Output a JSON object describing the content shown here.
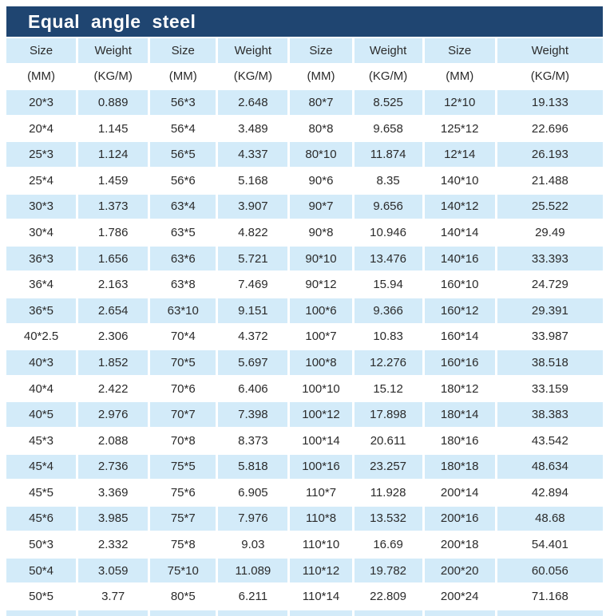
{
  "title": "Equal angle steel",
  "colors": {
    "title_bar_bg": "#1f4571",
    "title_text": "#ffffff",
    "row_highlight": "#d3ebf9",
    "row_alt": "#ffffff",
    "body_text": "#2b2b2b"
  },
  "table": {
    "headers": [
      "Size",
      "Weight",
      "Size",
      "Weight",
      "Size",
      "Weight",
      "Size",
      "Weight"
    ],
    "units": [
      "(MM)",
      "(KG/M)",
      "(MM)",
      "(KG/M)",
      "(MM)",
      "(KG/M)",
      "(MM)",
      "(KG/M)"
    ],
    "rows": [
      [
        "20*3",
        "0.889",
        "56*3",
        "2.648",
        "80*7",
        "8.525",
        "12*10",
        "19.133"
      ],
      [
        "20*4",
        "1.145",
        "56*4",
        "3.489",
        "80*8",
        "9.658",
        "125*12",
        "22.696"
      ],
      [
        "25*3",
        "1.124",
        "56*5",
        "4.337",
        "80*10",
        "11.874",
        "12*14",
        "26.193"
      ],
      [
        "25*4",
        "1.459",
        "56*6",
        "5.168",
        "90*6",
        "8.35",
        "140*10",
        "21.488"
      ],
      [
        "30*3",
        "1.373",
        "63*4",
        "3.907",
        "90*7",
        "9.656",
        "140*12",
        "25.522"
      ],
      [
        "30*4",
        "1.786",
        "63*5",
        "4.822",
        "90*8",
        "10.946",
        "140*14",
        "29.49"
      ],
      [
        "36*3",
        "1.656",
        "63*6",
        "5.721",
        "90*10",
        "13.476",
        "140*16",
        "33.393"
      ],
      [
        "36*4",
        "2.163",
        "63*8",
        "7.469",
        "90*12",
        "15.94",
        "160*10",
        "24.729"
      ],
      [
        "36*5",
        "2.654",
        "63*10",
        "9.151",
        "100*6",
        "9.366",
        "160*12",
        "29.391"
      ],
      [
        "40*2.5",
        "2.306",
        "70*4",
        "4.372",
        "100*7",
        "10.83",
        "160*14",
        "33.987"
      ],
      [
        "40*3",
        "1.852",
        "70*5",
        "5.697",
        "100*8",
        "12.276",
        "160*16",
        "38.518"
      ],
      [
        "40*4",
        "2.422",
        "70*6",
        "6.406",
        "100*10",
        "15.12",
        "180*12",
        "33.159"
      ],
      [
        "40*5",
        "2.976",
        "70*7",
        "7.398",
        "100*12",
        "17.898",
        "180*14",
        "38.383"
      ],
      [
        "45*3",
        "2.088",
        "70*8",
        "8.373",
        "100*14",
        "20.611",
        "180*16",
        "43.542"
      ],
      [
        "45*4",
        "2.736",
        "75*5",
        "5.818",
        "100*16",
        "23.257",
        "180*18",
        "48.634"
      ],
      [
        "45*5",
        "3.369",
        "75*6",
        "6.905",
        "110*7",
        "11.928",
        "200*14",
        "42.894"
      ],
      [
        "45*6",
        "3.985",
        "75*7",
        "7.976",
        "110*8",
        "13.532",
        "200*16",
        "48.68"
      ],
      [
        "50*3",
        "2.332",
        "75*8",
        "9.03",
        "110*10",
        "16.69",
        "200*18",
        "54.401"
      ],
      [
        "50*4",
        "3.059",
        "75*10",
        "11.089",
        "110*12",
        "19.782",
        "200*20",
        "60.056"
      ],
      [
        "50*5",
        "3.77",
        "80*5",
        "6.211",
        "110*14",
        "22.809",
        "200*24",
        "71.168"
      ]
    ]
  }
}
